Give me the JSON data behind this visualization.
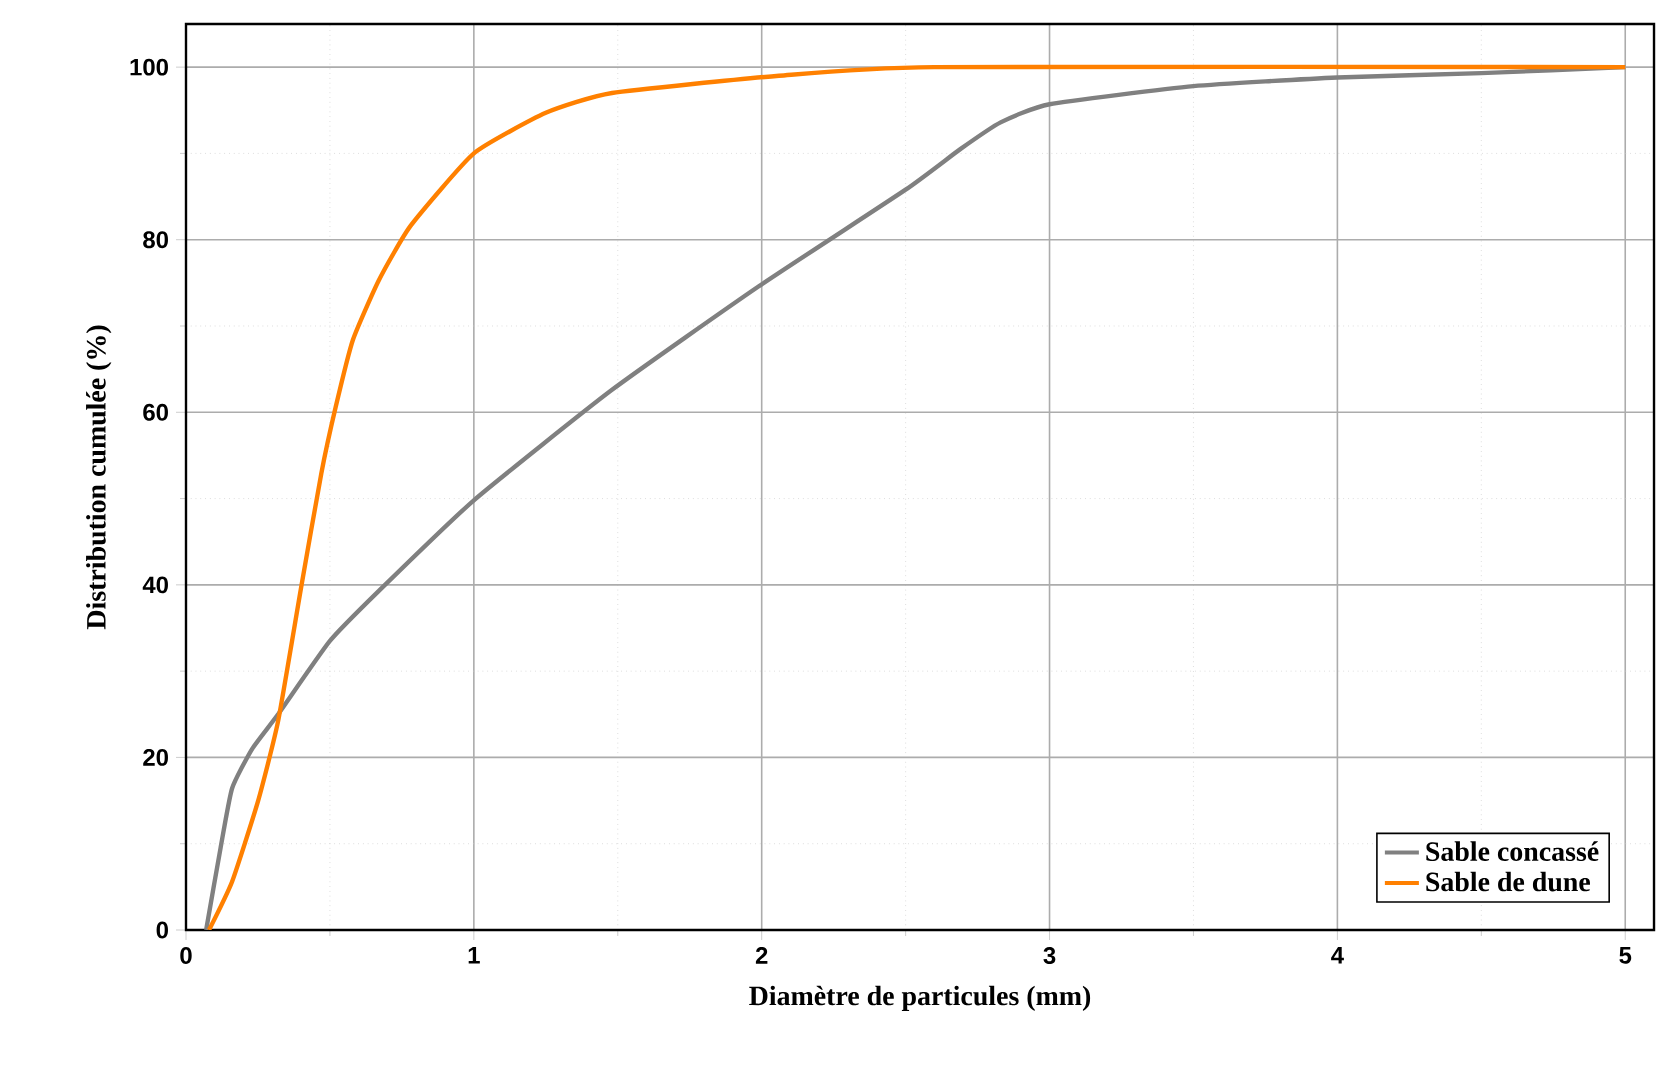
{
  "chart_data": {
    "type": "line",
    "xlabel": "Diamètre de particules (mm)",
    "ylabel": "Distribution cumulée (%)",
    "xlim": [
      0,
      5.1
    ],
    "ylim": [
      0,
      105
    ],
    "xticks": [
      0,
      1,
      2,
      3,
      4,
      5
    ],
    "yticks": [
      0,
      20,
      40,
      60,
      80,
      100
    ],
    "grid": true,
    "legend": "bottom right",
    "marker": "none",
    "line_style": "solid",
    "series": [
      {
        "name": "Sable concassé",
        "color": "#808080",
        "x": [
          0.07,
          0.12,
          0.16,
          0.23,
          0.32,
          0.5,
          0.67,
          1.0,
          1.48,
          1.99,
          2.5,
          2.69,
          2.83,
          3.0,
          3.5,
          4.0,
          4.5,
          5.0
        ],
        "values": [
          0,
          9.5,
          16.4,
          21,
          25,
          33.5,
          39.3,
          49.8,
          62.6,
          74.6,
          85.8,
          90.5,
          93.6,
          95.7,
          97.8,
          98.8,
          99.3,
          100
        ]
      },
      {
        "name": "Sable de dune",
        "color": "#ff8000",
        "x": [
          0.08,
          0.16,
          0.25,
          0.32,
          0.4,
          0.47,
          0.52,
          0.58,
          0.67,
          0.78,
          1.0,
          1.25,
          1.48,
          2.06,
          2.6,
          5.0
        ],
        "values": [
          0,
          5.6,
          14.9,
          24.2,
          39.7,
          52.9,
          60.6,
          68.4,
          75.3,
          81.6,
          90,
          94.7,
          97,
          99,
          100,
          100
        ]
      }
    ]
  }
}
